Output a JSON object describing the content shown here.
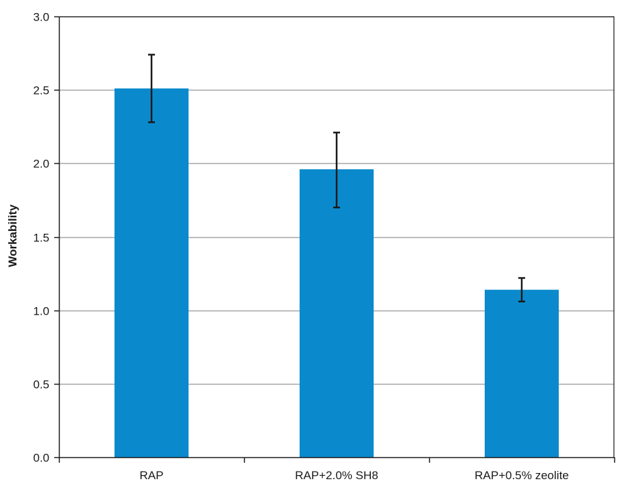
{
  "chart_data": {
    "type": "bar",
    "title": "",
    "xlabel": "",
    "ylabel": "Workability",
    "ylim": [
      0,
      3.0
    ],
    "yticks": [
      0.0,
      0.5,
      1.0,
      1.5,
      2.0,
      2.5,
      3.0
    ],
    "ytick_labels": [
      "0.0",
      "0.5",
      "1.0",
      "1.5",
      "2.0",
      "2.5",
      "3.0"
    ],
    "categories": [
      "RAP",
      "RAP+2.0% SH8",
      "RAP+0.5% zeolite"
    ],
    "values": [
      2.51,
      1.96,
      1.14
    ],
    "error_low": [
      2.28,
      1.7,
      1.06
    ],
    "error_high": [
      2.74,
      2.21,
      1.22
    ],
    "grid": true,
    "legend": "none",
    "colors": {
      "bar": "#0a8acd",
      "error_bar": "#1a1a1a",
      "grid": "#a6a6a6",
      "axis": "#1a1a1a"
    }
  }
}
